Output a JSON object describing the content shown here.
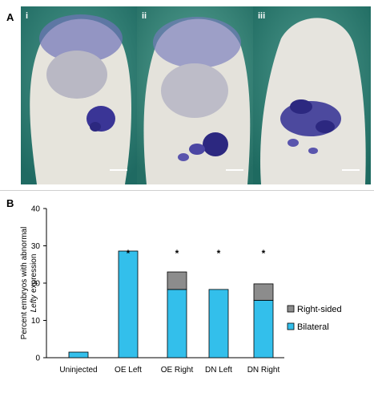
{
  "panel_a": {
    "label": "A",
    "images": [
      {
        "numeral": "i"
      },
      {
        "numeral": "ii"
      },
      {
        "numeral": "iii"
      }
    ]
  },
  "panel_b": {
    "label": "B"
  },
  "chart_data": {
    "type": "bar",
    "stacked": true,
    "categories": [
      "Uninjected",
      "OE Left",
      "OE Right",
      "DN Left",
      "DN Right"
    ],
    "series": [
      {
        "name": "Bilateral",
        "values": [
          1.5,
          28.6,
          18.3,
          18.3,
          15.4
        ],
        "color": "#33bfeb"
      },
      {
        "name": "Right-sided",
        "values": [
          0,
          0,
          4.7,
          0,
          4.4
        ],
        "color": "#8c8c8c"
      }
    ],
    "significance": [
      "",
      "*",
      "*",
      "*",
      "*"
    ],
    "ylabel_line1": "Percent embryos with abnormal",
    "ylabel_line2_italic": "Lefty",
    "ylabel_line2_rest": " expression",
    "ylim": [
      0,
      40
    ],
    "yticks": [
      0,
      10,
      20,
      30,
      40
    ],
    "legend_position": "right"
  }
}
